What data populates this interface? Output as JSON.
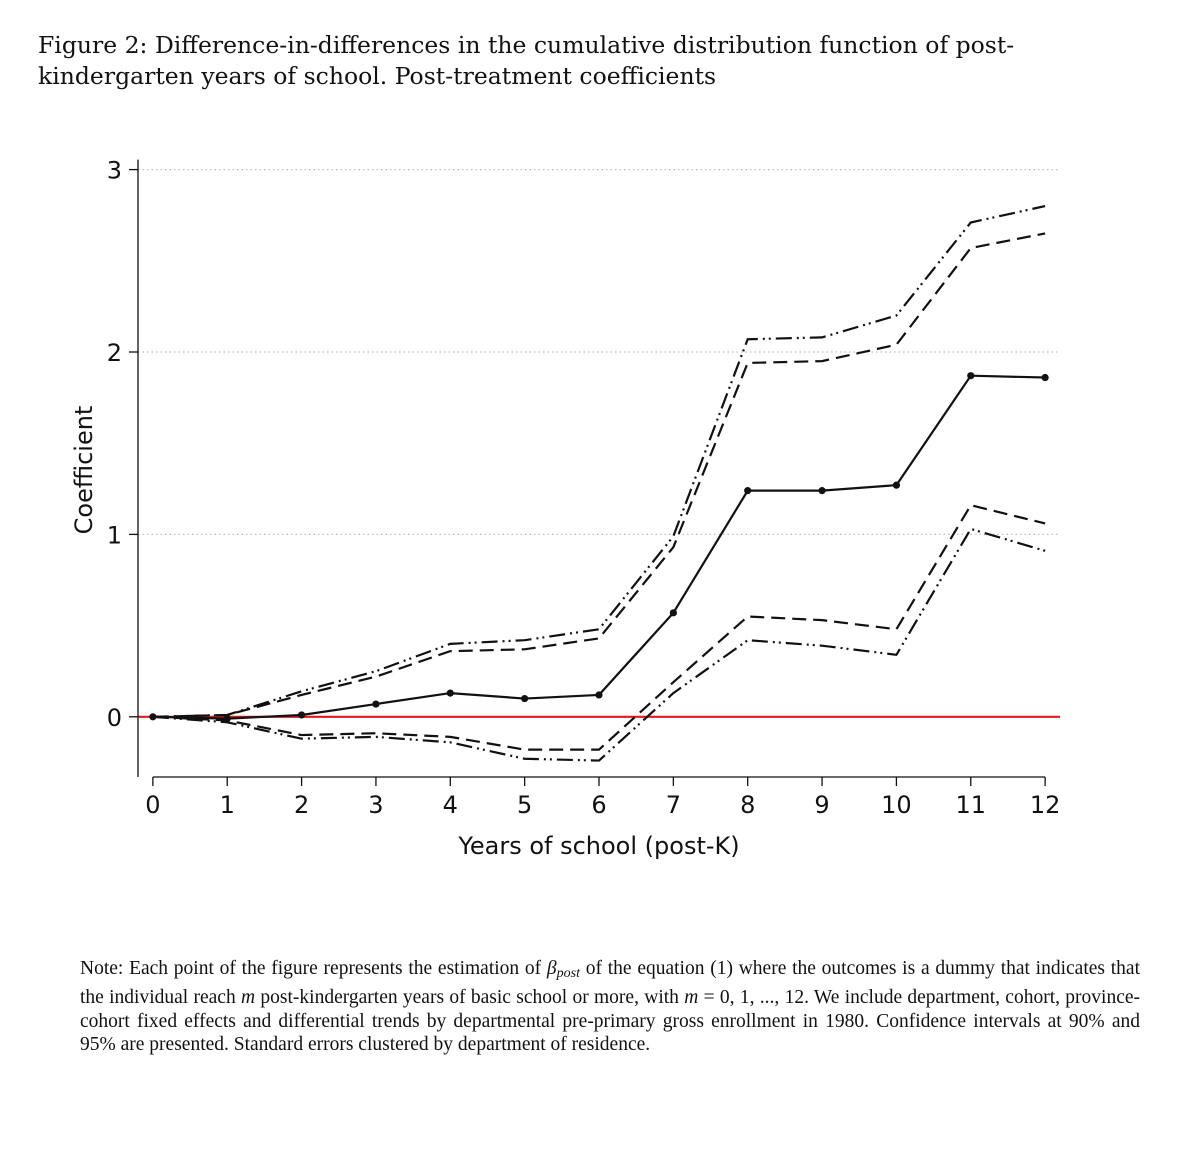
{
  "caption": {
    "line1": "Figure 2:  Difference-in-differences in the cumulative distribution function of post-",
    "line2": "kindergarten years of school. Post-treatment coefficients"
  },
  "note": {
    "t1": "Note: Each point of the figure represents the estimation of ",
    "beta": "β",
    "sub": "post",
    "t2": " of the equation (1) where the outcomes is a dummy that indicates that the individual reach ",
    "m1": "m",
    "t3": " post-kindergarten years of basic school or more, with ",
    "m2": "m",
    "t4": " = 0, 1, ..., 12.  We include department, cohort, province-cohort fixed effects and differential trends by departmental pre-primary gross enrollment in 1980. Confidence intervals at 90% and 95% are presented. Standard errors clustered by department of residence."
  },
  "chart_data": {
    "type": "line",
    "xlabel": "Years of school (post-K)",
    "ylabel": "Coefficient",
    "x": [
      0,
      1,
      2,
      3,
      4,
      5,
      6,
      7,
      8,
      9,
      10,
      11,
      12
    ],
    "xticks": [
      "0",
      "1",
      "2",
      "3",
      "4",
      "5",
      "6",
      "7",
      "8",
      "9",
      "10",
      "11",
      "12"
    ],
    "yticks": [
      "0",
      "1",
      "2",
      "3"
    ],
    "xlim": [
      -0.2,
      12.2
    ],
    "ylim": [
      -0.33,
      3.08
    ],
    "grid": true,
    "reference_line": {
      "y": 0,
      "color": "#e31a1c"
    },
    "series": [
      {
        "style": "solid-markers",
        "values": [
          0,
          -0.01,
          0.01,
          0.07,
          0.13,
          0.1,
          0.12,
          0.57,
          1.24,
          1.24,
          1.27,
          1.87,
          1.86
        ]
      },
      {
        "style": "dashed",
        "values": [
          0,
          0.01,
          0.12,
          0.22,
          0.36,
          0.37,
          0.43,
          0.93,
          1.94,
          1.95,
          2.04,
          2.57,
          2.65
        ]
      },
      {
        "style": "dashed",
        "values": [
          0,
          -0.02,
          -0.1,
          -0.09,
          -0.11,
          -0.18,
          -0.18,
          0.19,
          0.55,
          0.53,
          0.48,
          1.16,
          1.06
        ]
      },
      {
        "style": "dash-dot-dot",
        "values": [
          0,
          0.01,
          0.14,
          0.25,
          0.4,
          0.42,
          0.48,
          0.99,
          2.07,
          2.08,
          2.2,
          2.71,
          2.8
        ]
      },
      {
        "style": "dash-dot-dot",
        "values": [
          0,
          -0.03,
          -0.12,
          -0.11,
          -0.14,
          -0.23,
          -0.24,
          0.13,
          0.42,
          0.39,
          0.34,
          1.03,
          0.91
        ]
      }
    ]
  }
}
